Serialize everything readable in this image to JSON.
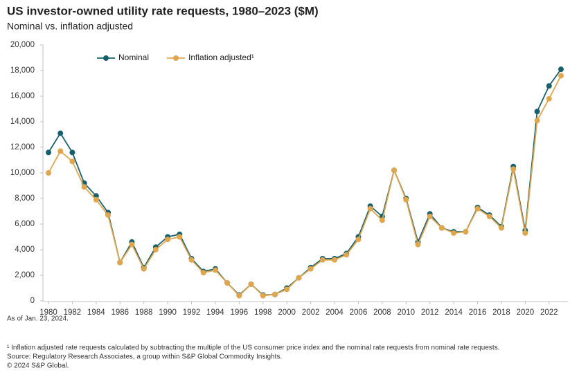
{
  "chart_data": {
    "type": "line",
    "title": "US investor-owned utility rate requests, 1980–2023  ($M)",
    "subtitle": "Nominal vs. inflation adjusted",
    "x": [
      1980,
      1981,
      1982,
      1983,
      1984,
      1985,
      1986,
      1987,
      1988,
      1989,
      1990,
      1991,
      1992,
      1993,
      1994,
      1995,
      1996,
      1997,
      1998,
      1999,
      2000,
      2001,
      2002,
      2003,
      2004,
      2005,
      2006,
      2007,
      2008,
      2009,
      2010,
      2011,
      2012,
      2013,
      2014,
      2015,
      2016,
      2017,
      2018,
      2019,
      2020,
      2021,
      2022,
      2023
    ],
    "xlim": [
      1980,
      2023
    ],
    "xticks": [
      1980,
      1982,
      1984,
      1986,
      1988,
      1990,
      1992,
      1994,
      1996,
      1998,
      2000,
      2002,
      2004,
      2006,
      2008,
      2010,
      2012,
      2014,
      2016,
      2018,
      2020,
      2022
    ],
    "ylim": [
      0,
      20000
    ],
    "yticks": [
      0,
      {
        "value": 2000,
        "label": "2,000"
      },
      {
        "value": 4000,
        "label": "4,000"
      },
      {
        "value": 6000,
        "label": "6,000"
      },
      {
        "value": 8000,
        "label": "8,000"
      },
      {
        "value": 10000,
        "label": "10,000"
      },
      {
        "value": 12000,
        "label": "12,000"
      },
      {
        "value": 14000,
        "label": "14,000"
      },
      {
        "value": 16000,
        "label": "16,000"
      },
      {
        "value": 18000,
        "label": "18,000"
      },
      {
        "value": 20000,
        "label": "20,000"
      }
    ],
    "grid": false,
    "legend": "top-left",
    "series": [
      {
        "name": "Nominal",
        "color": "#17606e",
        "values": [
          11600,
          13100,
          11600,
          9200,
          8200,
          6900,
          3000,
          4600,
          2600,
          4200,
          5000,
          5200,
          3300,
          2300,
          2500,
          1400,
          450,
          1300,
          450,
          500,
          1000,
          1800,
          2600,
          3300,
          3300,
          3700,
          5000,
          7400,
          6600,
          10200,
          8000,
          4600,
          6800,
          5700,
          5400,
          5400,
          7300,
          6700,
          5800,
          10500,
          5500,
          14800,
          16800,
          18100
        ]
      },
      {
        "name": "Inflation adjusted¹",
        "color": "#e0a64e",
        "values": [
          10000,
          11700,
          10900,
          8900,
          7900,
          6700,
          3000,
          4400,
          2500,
          4000,
          4800,
          5000,
          3200,
          2200,
          2400,
          1400,
          400,
          1300,
          400,
          500,
          900,
          1800,
          2500,
          3200,
          3200,
          3600,
          4800,
          7200,
          6300,
          10200,
          7900,
          4400,
          6600,
          5700,
          5300,
          5400,
          7200,
          6600,
          5700,
          10300,
          5300,
          14100,
          15800,
          17600
        ]
      }
    ],
    "notes": [
      "As of Jan. 23, 2024.",
      "¹ Inflation adjusted rate requests calculated by subtracting the multiple of the US consumer price index and the nominal rate requests from nominal rate requests.",
      "Source: Regulatory Research Associates, a group within S&P Global Commodity Insights.",
      "© 2024 S&P Global."
    ]
  }
}
